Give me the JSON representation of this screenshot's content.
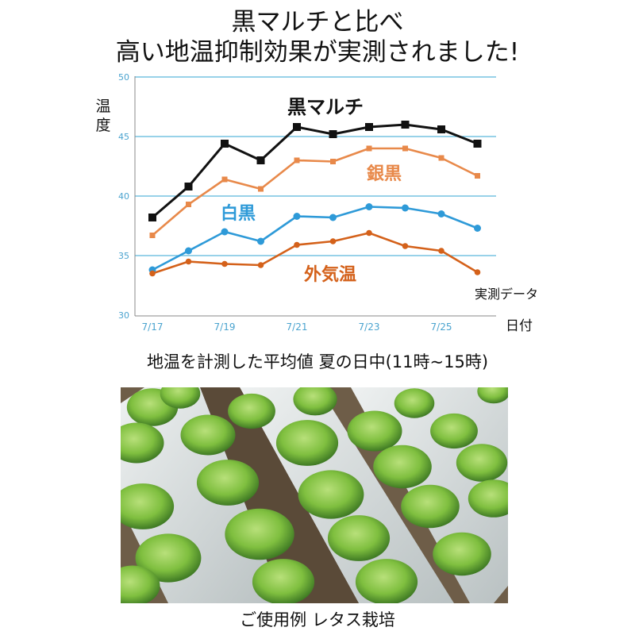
{
  "header": {
    "title_line1": "黒マルチと比べ",
    "title_line2": "高い地温抑制効果が実測されました!"
  },
  "chart_data": {
    "type": "line",
    "ylabel": "温度",
    "xlabel": "日付",
    "ylim": [
      30,
      50
    ],
    "yticks": [
      "30",
      "35",
      "40",
      "45",
      "50"
    ],
    "grid": true,
    "x_index": [
      0,
      1,
      2,
      3,
      4,
      5,
      6,
      7,
      8,
      9
    ],
    "x_tick_labels": [
      {
        "i": 0,
        "label": "7/17"
      },
      {
        "i": 2,
        "label": "7/19"
      },
      {
        "i": 4,
        "label": "7/21"
      },
      {
        "i": 6,
        "label": "7/23"
      },
      {
        "i": 8,
        "label": "7/25"
      }
    ],
    "series": [
      {
        "name": "黒マルチ",
        "color": "#111111",
        "marker": "square",
        "values": [
          38.2,
          40.8,
          44.4,
          43.0,
          45.8,
          45.2,
          45.8,
          46.0,
          45.6,
          44.4
        ]
      },
      {
        "name": "銀黒",
        "color": "#e8894a",
        "marker": "square",
        "values": [
          36.7,
          39.3,
          41.4,
          40.6,
          43.0,
          42.9,
          44.0,
          44.0,
          43.2,
          41.7
        ]
      },
      {
        "name": "白黒",
        "color": "#2e9ad8",
        "marker": "circle",
        "values": [
          33.8,
          35.4,
          37.0,
          36.2,
          38.3,
          38.2,
          39.1,
          39.0,
          38.5,
          37.3
        ]
      },
      {
        "name": "外気温",
        "color": "#d4611a",
        "marker": "circle",
        "values": [
          33.5,
          34.5,
          34.3,
          34.2,
          35.9,
          36.2,
          36.9,
          35.8,
          35.4,
          33.6
        ]
      }
    ],
    "note": "実測データ"
  },
  "captions": {
    "chart_caption": "地温を計測した平均値 夏の日中(11時~15時)",
    "photo_caption": "ご使用例 レタス栽培"
  },
  "colors": {
    "grid": "#5bb8dc",
    "axis_text": "#4aa3cf"
  }
}
